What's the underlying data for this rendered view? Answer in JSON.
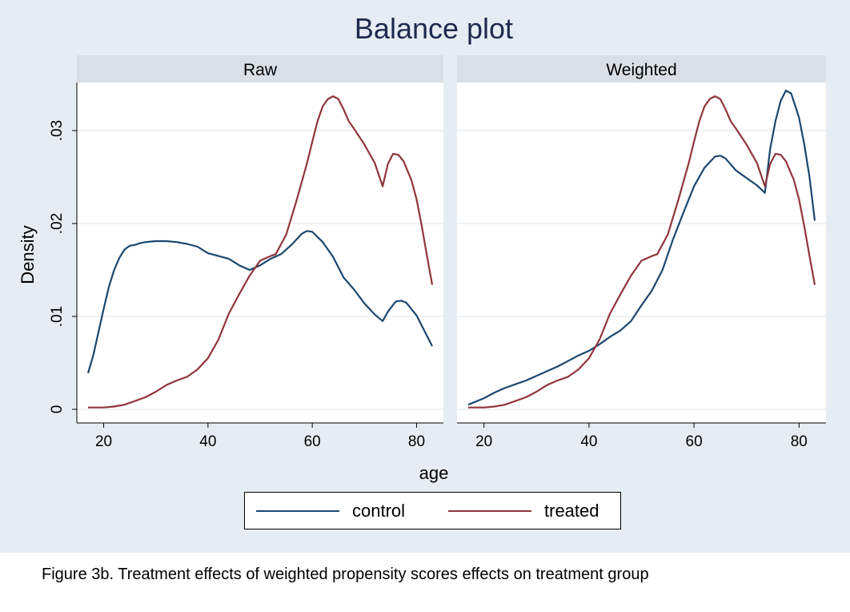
{
  "chart_data": {
    "type": "line",
    "title": "Balance plot",
    "xlabel": "age",
    "ylabel": "Density",
    "xlim": [
      17,
      83
    ],
    "ylim": [
      0,
      0.035
    ],
    "xticks": [
      20,
      40,
      60,
      80
    ],
    "yticks": [
      0,
      0.01,
      0.02,
      0.03
    ],
    "xtick_labels": [
      "20",
      "40",
      "60",
      "80"
    ],
    "ytick_labels": [
      "0",
      ".01",
      ".02",
      ".03"
    ],
    "grid": true,
    "legend_placement": "bottom",
    "colors": {
      "control": "#1a476f",
      "treated": "#90353b"
    },
    "panels": [
      {
        "title": "Raw",
        "series": [
          {
            "name": "control",
            "points": [
              [
                17,
                0.0039
              ],
              [
                18,
                0.0058
              ],
              [
                19,
                0.0083
              ],
              [
                20,
                0.0108
              ],
              [
                21,
                0.0132
              ],
              [
                22,
                0.015
              ],
              [
                23,
                0.0163
              ],
              [
                24,
                0.0172
              ],
              [
                25,
                0.0176
              ],
              [
                26,
                0.0177
              ],
              [
                27,
                0.0179
              ],
              [
                28,
                0.018
              ],
              [
                30,
                0.0181
              ],
              [
                32,
                0.0181
              ],
              [
                34,
                0.018
              ],
              [
                36,
                0.0178
              ],
              [
                38,
                0.0175
              ],
              [
                40,
                0.0168
              ],
              [
                42,
                0.0165
              ],
              [
                44,
                0.0162
              ],
              [
                46,
                0.0155
              ],
              [
                48,
                0.015
              ],
              [
                50,
                0.0155
              ],
              [
                52,
                0.0162
              ],
              [
                54,
                0.0167
              ],
              [
                56,
                0.0177
              ],
              [
                58,
                0.0189
              ],
              [
                59,
                0.0192
              ],
              [
                60,
                0.0191
              ],
              [
                62,
                0.018
              ],
              [
                64,
                0.0164
              ],
              [
                66,
                0.0142
              ],
              [
                68,
                0.0129
              ],
              [
                70,
                0.0114
              ],
              [
                72,
                0.0102
              ],
              [
                73.5,
                0.0095
              ],
              [
                74.5,
                0.0105
              ],
              [
                76,
                0.0116
              ],
              [
                77,
                0.0117
              ],
              [
                78,
                0.0115
              ],
              [
                80,
                0.0101
              ],
              [
                82,
                0.0079
              ],
              [
                83,
                0.0068
              ]
            ]
          },
          {
            "name": "treated",
            "points": [
              [
                17,
                0.0002
              ],
              [
                20,
                0.0002
              ],
              [
                22,
                0.0003
              ],
              [
                24,
                0.0005
              ],
              [
                26,
                0.0009
              ],
              [
                28,
                0.0013
              ],
              [
                30,
                0.0019
              ],
              [
                32,
                0.0026
              ],
              [
                34,
                0.0031
              ],
              [
                36,
                0.0035
              ],
              [
                38,
                0.0043
              ],
              [
                40,
                0.0055
              ],
              [
                42,
                0.0075
              ],
              [
                44,
                0.0103
              ],
              [
                46,
                0.0124
              ],
              [
                48,
                0.0144
              ],
              [
                50,
                0.016
              ],
              [
                52,
                0.0165
              ],
              [
                53,
                0.0167
              ],
              [
                55,
                0.0188
              ],
              [
                57,
                0.0225
              ],
              [
                59,
                0.0265
              ],
              [
                60,
                0.0288
              ],
              [
                61,
                0.031
              ],
              [
                62,
                0.0326
              ],
              [
                63,
                0.0334
              ],
              [
                64,
                0.0337
              ],
              [
                65,
                0.0334
              ],
              [
                66,
                0.0323
              ],
              [
                67,
                0.031
              ],
              [
                68,
                0.0302
              ],
              [
                70,
                0.0285
              ],
              [
                72,
                0.0265
              ],
              [
                73.5,
                0.024
              ],
              [
                74.5,
                0.0264
              ],
              [
                75.5,
                0.0275
              ],
              [
                76.5,
                0.0274
              ],
              [
                77.5,
                0.0267
              ],
              [
                79,
                0.0247
              ],
              [
                80,
                0.0226
              ],
              [
                81,
                0.0197
              ],
              [
                82,
                0.0165
              ],
              [
                83,
                0.0134
              ]
            ]
          }
        ]
      },
      {
        "title": "Weighted",
        "series": [
          {
            "name": "control",
            "points": [
              [
                17,
                0.0005
              ],
              [
                20,
                0.0012
              ],
              [
                22,
                0.0018
              ],
              [
                24,
                0.0023
              ],
              [
                26,
                0.0027
              ],
              [
                28,
                0.0031
              ],
              [
                30,
                0.0036
              ],
              [
                32,
                0.0041
              ],
              [
                34,
                0.0046
              ],
              [
                36,
                0.0052
              ],
              [
                38,
                0.0058
              ],
              [
                40,
                0.0063
              ],
              [
                42,
                0.007
              ],
              [
                44,
                0.0078
              ],
              [
                46,
                0.0085
              ],
              [
                48,
                0.0095
              ],
              [
                50,
                0.0112
              ],
              [
                52,
                0.0128
              ],
              [
                54,
                0.015
              ],
              [
                56,
                0.0183
              ],
              [
                58,
                0.0212
              ],
              [
                60,
                0.024
              ],
              [
                62,
                0.026
              ],
              [
                64,
                0.0272
              ],
              [
                65,
                0.0273
              ],
              [
                66,
                0.027
              ],
              [
                68,
                0.0257
              ],
              [
                70,
                0.0249
              ],
              [
                72,
                0.0241
              ],
              [
                73.5,
                0.0233
              ],
              [
                74.5,
                0.028
              ],
              [
                75.5,
                0.031
              ],
              [
                76.5,
                0.0332
              ],
              [
                77.5,
                0.0343
              ],
              [
                78.5,
                0.034
              ],
              [
                80,
                0.0314
              ],
              [
                81,
                0.0285
              ],
              [
                82,
                0.025
              ],
              [
                83,
                0.0203
              ]
            ]
          },
          {
            "name": "treated",
            "points": [
              [
                17,
                0.0002
              ],
              [
                20,
                0.0002
              ],
              [
                22,
                0.0003
              ],
              [
                24,
                0.0005
              ],
              [
                26,
                0.0009
              ],
              [
                28,
                0.0013
              ],
              [
                30,
                0.0019
              ],
              [
                32,
                0.0026
              ],
              [
                34,
                0.0031
              ],
              [
                36,
                0.0035
              ],
              [
                38,
                0.0043
              ],
              [
                40,
                0.0055
              ],
              [
                42,
                0.0075
              ],
              [
                44,
                0.0103
              ],
              [
                46,
                0.0124
              ],
              [
                48,
                0.0144
              ],
              [
                50,
                0.016
              ],
              [
                52,
                0.0165
              ],
              [
                53,
                0.0167
              ],
              [
                55,
                0.0188
              ],
              [
                57,
                0.0225
              ],
              [
                59,
                0.0265
              ],
              [
                60,
                0.0288
              ],
              [
                61,
                0.031
              ],
              [
                62,
                0.0326
              ],
              [
                63,
                0.0334
              ],
              [
                64,
                0.0337
              ],
              [
                65,
                0.0334
              ],
              [
                66,
                0.0323
              ],
              [
                67,
                0.031
              ],
              [
                68,
                0.0302
              ],
              [
                70,
                0.0285
              ],
              [
                72,
                0.0265
              ],
              [
                73.5,
                0.024
              ],
              [
                74.5,
                0.0264
              ],
              [
                75.5,
                0.0275
              ],
              [
                76.5,
                0.0274
              ],
              [
                77.5,
                0.0267
              ],
              [
                79,
                0.0247
              ],
              [
                80,
                0.0226
              ],
              [
                81,
                0.0197
              ],
              [
                82,
                0.0165
              ],
              [
                83,
                0.0134
              ]
            ]
          }
        ]
      }
    ]
  },
  "legend": {
    "control_label": "control",
    "treated_label": "treated"
  },
  "caption": "Figure 3b. Treatment effects of weighted propensity scores effects on treatment group"
}
